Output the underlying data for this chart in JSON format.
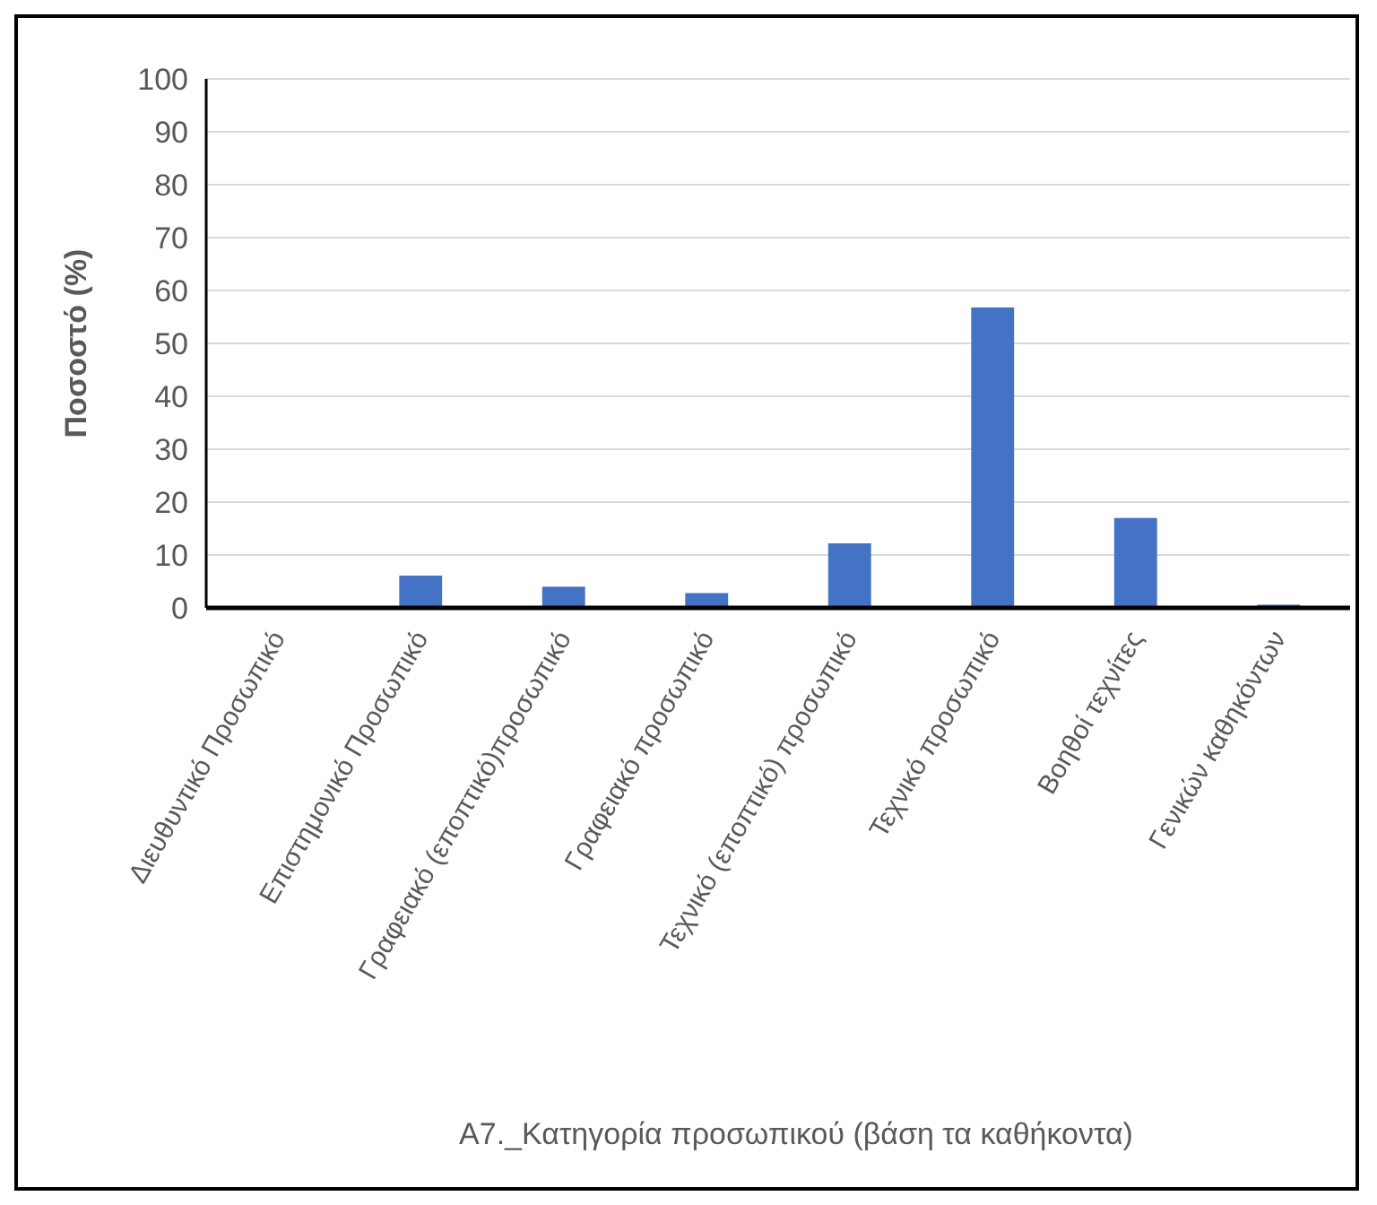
{
  "chart_data": {
    "type": "bar",
    "xlabel": "A7._Κατηγορία προσωπικού (βάση τα καθήκοντα)",
    "ylabel": "Ποσοστό (%)",
    "categories": [
      "Διευθυντικό Προσωπικό",
      "Επιστημονικό Προσωπικό",
      "Γραφειακό (εποπτικό)προσωπικό",
      "Γραφειακό προσωπικό",
      "Τεχνικό (εποπτικό) προσωπικό",
      "Τεχνικό προσωπικό",
      "Βοηθοί τεχνίτες",
      "Γενικών καθηκόντων"
    ],
    "values": [
      0,
      6.1,
      4,
      2.8,
      12.2,
      56.8,
      17,
      0.6
    ],
    "color": "#4472c4",
    "ylim": [
      0,
      100
    ],
    "yticks": [
      0,
      10,
      20,
      30,
      40,
      50,
      60,
      70,
      80,
      90,
      100
    ],
    "grid": "y"
  }
}
